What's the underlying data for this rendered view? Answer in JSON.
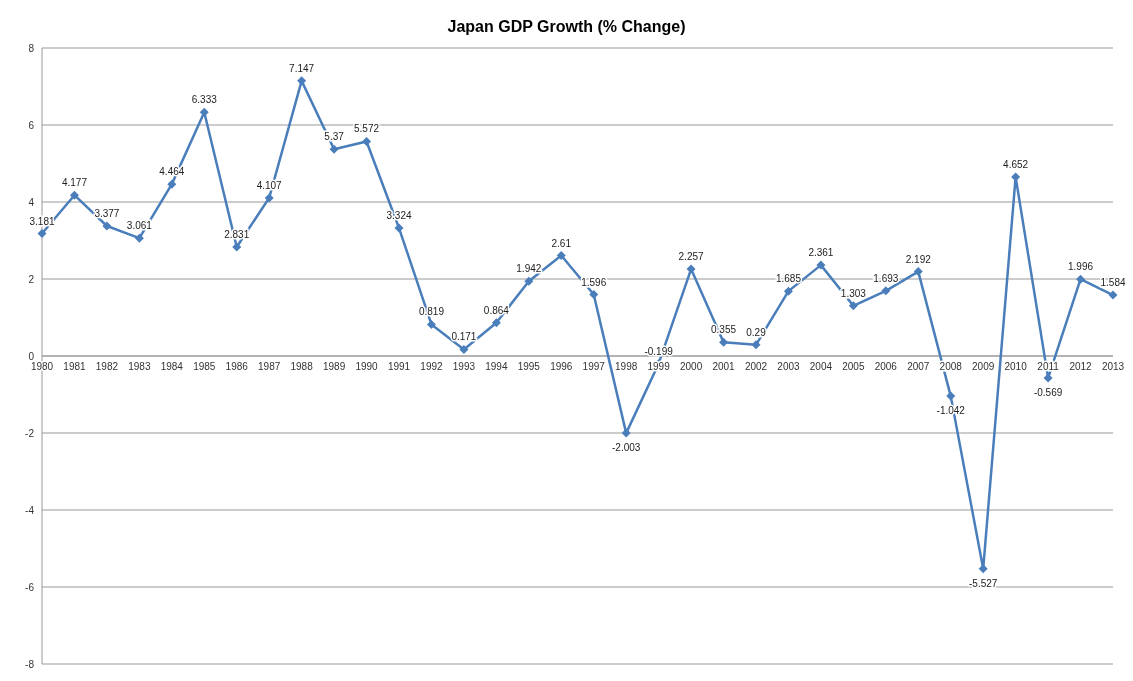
{
  "chart_data": {
    "type": "line",
    "title": "Japan GDP Growth (% Change)",
    "categories": [
      "1980",
      "1981",
      "1982",
      "1983",
      "1984",
      "1985",
      "1986",
      "1987",
      "1988",
      "1989",
      "1990",
      "1991",
      "1992",
      "1993",
      "1994",
      "1995",
      "1996",
      "1997",
      "1998",
      "1999",
      "2000",
      "2001",
      "2002",
      "2003",
      "2004",
      "2005",
      "2006",
      "2007",
      "2008",
      "2009",
      "2010",
      "2011",
      "2012",
      "2013"
    ],
    "series": [
      {
        "color": "#4a7ebb",
        "values": [
          3.181,
          4.177,
          3.377,
          3.061,
          4.464,
          6.333,
          2.831,
          4.107,
          7.147,
          5.37,
          5.572,
          3.324,
          0.819,
          0.171,
          0.864,
          1.942,
          2.61,
          1.596,
          -2.003,
          -0.199,
          2.257,
          0.355,
          0.29,
          1.685,
          2.361,
          1.303,
          1.693,
          2.192,
          -1.042,
          -5.527,
          4.652,
          -0.569,
          1.996,
          1.584
        ]
      }
    ],
    "ylim": [
      -8,
      8
    ],
    "yticks": [
      -8,
      -6,
      -4,
      -2,
      0,
      2,
      4,
      6,
      8
    ],
    "grid": "y",
    "marker": "diamond",
    "data_labels": true
  }
}
